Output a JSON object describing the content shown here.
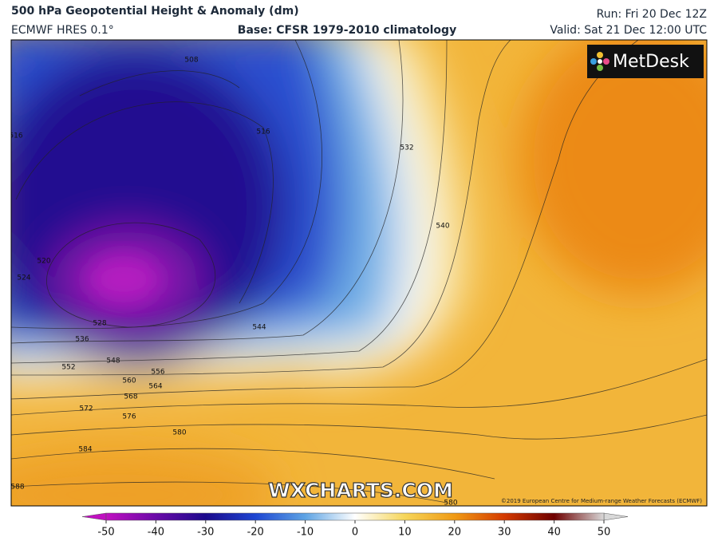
{
  "header": {
    "title": "500 hPa Geopotential Height & Anomaly (dm)",
    "model": "ECMWF HRES 0.1°",
    "base": "Base: CFSR 1979-2010 climatology",
    "run": "Run: Fri 20 Dec 12Z",
    "valid": "Valid: Sat 21 Dec 12:00 UTC"
  },
  "logo": "MetDesk",
  "watermark": "WXCHARTS.COM",
  "copyright": "©2019 European Centre for Medium-range Weather Forecasts (ECMWF)",
  "contour_labels": [
    508,
    516,
    516,
    532,
    540,
    520,
    524,
    528,
    536,
    544,
    548,
    552,
    556,
    560,
    564,
    568,
    572,
    576,
    580,
    584,
    588,
    580
  ],
  "colorbar": {
    "lim": [
      -50,
      50
    ],
    "ticks": [
      -50,
      -40,
      -30,
      -20,
      -10,
      0,
      10,
      20,
      30,
      40,
      50
    ],
    "colors": [
      "#c010c0",
      "#6a0aa8",
      "#1c0a8c",
      "#1e46d2",
      "#5ea4e4",
      "#ffffff",
      "#f6d65a",
      "#f09a14",
      "#d43a00",
      "#6e0000",
      "#d8d8d8"
    ]
  }
}
